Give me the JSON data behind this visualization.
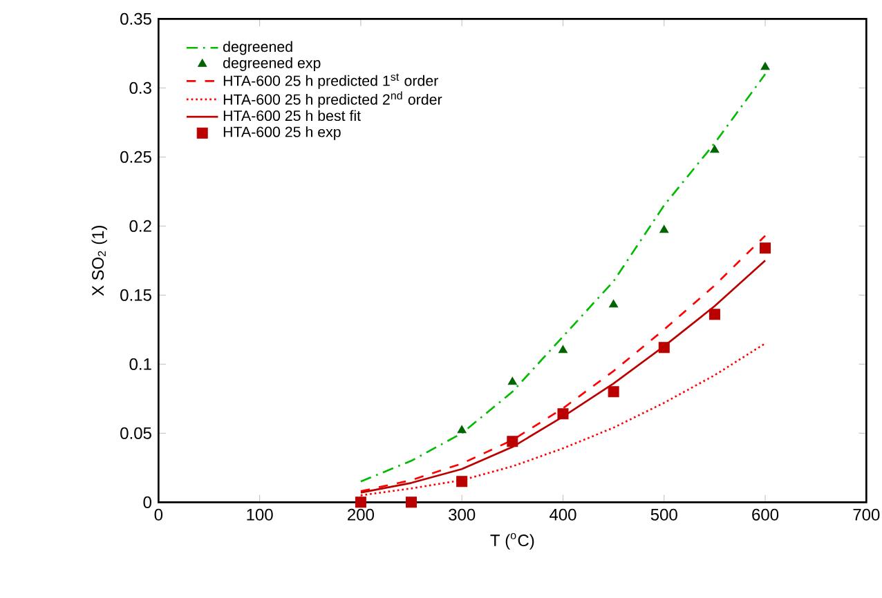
{
  "chart_data": {
    "type": "line",
    "xlabel": "T ($^{o}$C)",
    "ylabel": "X SO$_{2}$ (1)",
    "xlim": [
      0,
      700
    ],
    "ylim": [
      0,
      0.35
    ],
    "xticks": [
      0,
      100,
      200,
      300,
      400,
      500,
      600,
      700
    ],
    "yticks": [
      0,
      0.05,
      0.1,
      0.15,
      0.2,
      0.25,
      0.3,
      0.35
    ],
    "grid": false,
    "legend": "top left",
    "x": [
      200,
      250,
      300,
      350,
      400,
      450,
      500,
      550,
      600
    ],
    "series": [
      {
        "name": "degreened",
        "color": "#00bb00",
        "line_style": "dashdot",
        "marker": "none",
        "values": [
          0.015,
          0.03,
          0.05,
          0.08,
          0.12,
          0.16,
          0.215,
          0.26,
          0.31
        ]
      },
      {
        "name": "degreened exp",
        "type": "scatter",
        "color": "#006400",
        "marker": "triangle",
        "x": [
          300,
          350,
          400,
          450,
          500,
          550,
          600
        ],
        "values": [
          0.052,
          0.087,
          0.11,
          0.143,
          0.197,
          0.255,
          0.315
        ]
      },
      {
        "name": "HTA-600 25 h predicted 1$^{st}$ order",
        "color": "#ff0000",
        "line_style": "dashed",
        "marker": "none",
        "values": [
          0.008,
          0.016,
          0.028,
          0.045,
          0.068,
          0.095,
          0.125,
          0.157,
          0.193
        ]
      },
      {
        "name": "HTA-600 25 h predicted 2$^{nd}$ order",
        "color": "#ff0000",
        "line_style": "dotted",
        "marker": "none",
        "values": [
          0.005,
          0.01,
          0.016,
          0.026,
          0.039,
          0.054,
          0.072,
          0.092,
          0.115
        ]
      },
      {
        "name": "HTA-600 25 h best fit",
        "color": "#bb0000",
        "line_style": "solid",
        "marker": "none",
        "values": [
          0.007,
          0.014,
          0.024,
          0.04,
          0.062,
          0.086,
          0.113,
          0.142,
          0.175
        ]
      },
      {
        "name": "HTA-600 25 h exp",
        "type": "scatter",
        "color": "#bb0000",
        "marker": "square",
        "values": [
          0,
          0,
          0.015,
          0.044,
          0.064,
          0.08,
          0.112,
          0.136,
          0.184
        ]
      }
    ]
  }
}
